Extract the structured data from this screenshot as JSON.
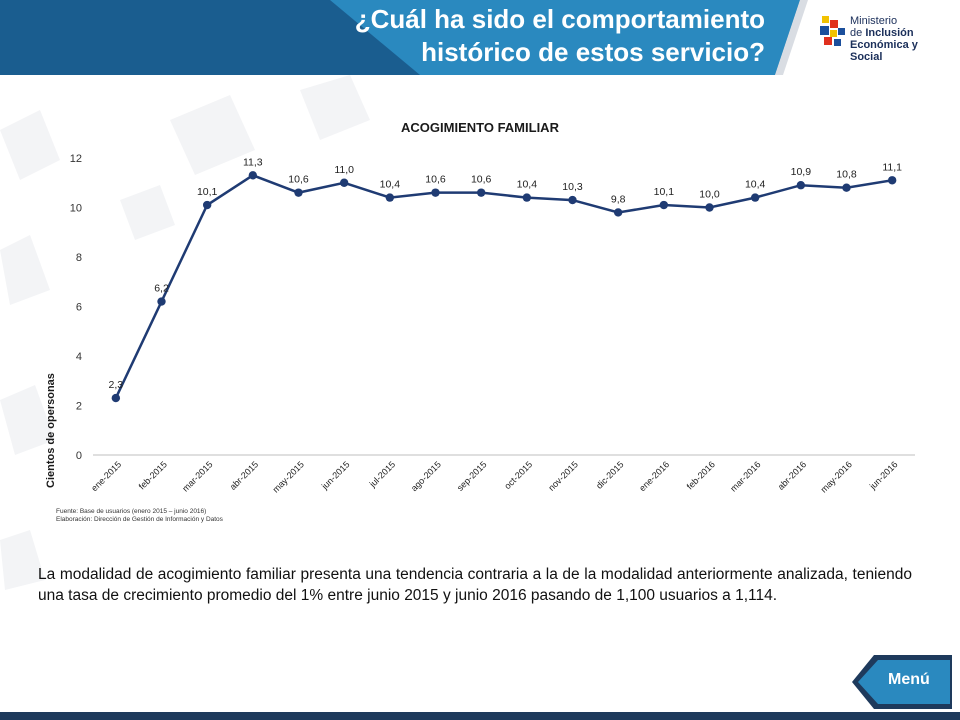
{
  "header": {
    "title_line1": "¿Cuál ha sido el comportamiento",
    "title_line2": "histórico de estos servicio?"
  },
  "logo": {
    "line1": "Ministerio",
    "line2_prefix": "de",
    "line2_bold": "Inclusión",
    "line3": "Económica y Social"
  },
  "chart_data": {
    "type": "line",
    "title": "ACOGIMIENTO FAMILIAR",
    "xlabel": "",
    "ylabel": "Cientos de opersonas",
    "ylim": [
      0,
      12
    ],
    "yticks": [
      0,
      2,
      4,
      6,
      8,
      10,
      12
    ],
    "grid": false,
    "categories": [
      "ene-2015",
      "feb-2015",
      "mar-2015",
      "abr-2015",
      "may-2015",
      "jun-2015",
      "jul-2015",
      "ago-2015",
      "sep-2015",
      "oct-2015",
      "nov-2015",
      "dic-2015",
      "ene-2016",
      "feb-2016",
      "mar-2016",
      "abr-2016",
      "may-2016",
      "jun-2016"
    ],
    "values": [
      2.3,
      6.2,
      10.1,
      11.3,
      10.6,
      11.0,
      10.4,
      10.6,
      10.6,
      10.4,
      10.3,
      9.8,
      10.1,
      10.0,
      10.4,
      10.9,
      10.8,
      11.1
    ],
    "data_labels": [
      "2,3",
      "6,2",
      "10,1",
      "11,3",
      "10,6",
      "11,0",
      "10,4",
      "10,6",
      "10,6",
      "10,4",
      "10,3",
      "9,8",
      "10,1",
      "10,0",
      "10,4",
      "10,9",
      "10,8",
      "11,1"
    ],
    "line_color": "#1f3b73",
    "source_line1": "Fuente: Base de usuarios (enero 2015 – junio 2016)",
    "source_line2": "Elaboración: Dirección de Gestión de Información y Datos"
  },
  "body_text": "La modalidad de acogimiento familiar presenta una  tendencia contraria a la de la modalidad anteriormente analizada,  teniendo una tasa de crecimiento promedio del 1% entre junio 2015 y junio 2016 pasando de 1,100 usuarios a 1,114.",
  "menu": {
    "label": "Menú"
  },
  "colors": {
    "header": "#1a5d8f",
    "accent": "#2a89bf",
    "menu": "#1e3a5c"
  }
}
